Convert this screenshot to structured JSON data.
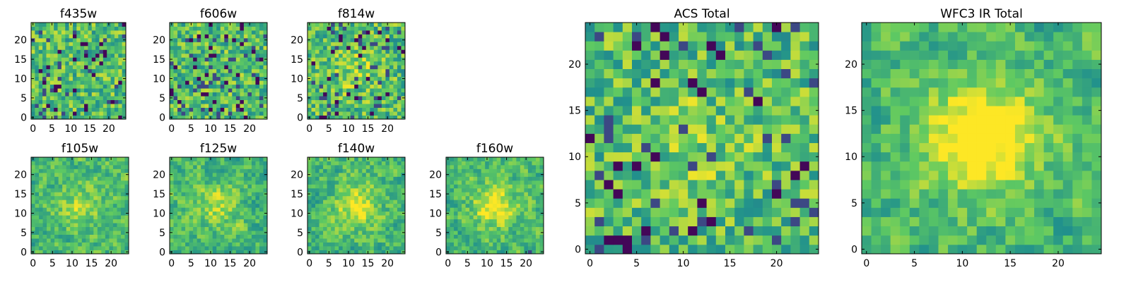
{
  "chart_data": [
    {
      "id": "f435w",
      "type": "heatmap",
      "title": "f435w",
      "grid_size": 25,
      "xlim": [
        0,
        24
      ],
      "ylim": [
        0,
        24
      ],
      "xticks": [
        0,
        5,
        10,
        15,
        20
      ],
      "yticks": [
        0,
        5,
        10,
        15,
        20
      ],
      "texture": "fine",
      "center_bright": 0.0,
      "seed": 11
    },
    {
      "id": "f606w",
      "type": "heatmap",
      "title": "f606w",
      "grid_size": 25,
      "xlim": [
        0,
        24
      ],
      "ylim": [
        0,
        24
      ],
      "xticks": [
        0,
        5,
        10,
        15,
        20
      ],
      "yticks": [
        0,
        5,
        10,
        15,
        20
      ],
      "texture": "fine",
      "center_bright": 0.0,
      "seed": 23
    },
    {
      "id": "f814w",
      "type": "heatmap",
      "title": "f814w",
      "grid_size": 25,
      "xlim": [
        0,
        24
      ],
      "ylim": [
        0,
        24
      ],
      "xticks": [
        0,
        5,
        10,
        15,
        20
      ],
      "yticks": [
        0,
        5,
        10,
        15,
        20
      ],
      "texture": "fine",
      "center_bright": 0.15,
      "seed": 37
    },
    {
      "id": "f105w",
      "type": "heatmap",
      "title": "f105w",
      "grid_size": 25,
      "xlim": [
        0,
        24
      ],
      "ylim": [
        0,
        24
      ],
      "xticks": [
        0,
        5,
        10,
        15,
        20
      ],
      "yticks": [
        0,
        5,
        10,
        15,
        20
      ],
      "texture": "smooth",
      "center_bright": 0.2,
      "seed": 41
    },
    {
      "id": "f125w",
      "type": "heatmap",
      "title": "f125w",
      "grid_size": 25,
      "xlim": [
        0,
        24
      ],
      "ylim": [
        0,
        24
      ],
      "xticks": [
        0,
        5,
        10,
        15,
        20
      ],
      "yticks": [
        0,
        5,
        10,
        15,
        20
      ],
      "texture": "smooth",
      "center_bright": 0.2,
      "seed": 53
    },
    {
      "id": "f140w",
      "type": "heatmap",
      "title": "f140w",
      "grid_size": 25,
      "xlim": [
        0,
        24
      ],
      "ylim": [
        0,
        24
      ],
      "xticks": [
        0,
        5,
        10,
        15,
        20
      ],
      "yticks": [
        0,
        5,
        10,
        15,
        20
      ],
      "texture": "smooth",
      "center_bright": 0.3,
      "seed": 67
    },
    {
      "id": "f160w",
      "type": "heatmap",
      "title": "f160w",
      "grid_size": 25,
      "xlim": [
        0,
        24
      ],
      "ylim": [
        0,
        24
      ],
      "xticks": [
        0,
        5,
        10,
        15,
        20
      ],
      "yticks": [
        0,
        5,
        10,
        15,
        20
      ],
      "texture": "smooth",
      "center_bright": 0.35,
      "seed": 79
    },
    {
      "id": "acs-total",
      "type": "heatmap",
      "title": "ACS Total",
      "grid_size": 25,
      "xlim": [
        0,
        24
      ],
      "ylim": [
        0,
        24
      ],
      "xticks": [
        0,
        5,
        10,
        15,
        20
      ],
      "yticks": [
        0,
        5,
        10,
        15,
        20
      ],
      "texture": "fine",
      "center_bright": 0.1,
      "seed": 97
    },
    {
      "id": "wfc3-ir-total",
      "type": "heatmap",
      "title": "WFC3 IR Total",
      "grid_size": 25,
      "xlim": [
        0,
        24
      ],
      "ylim": [
        0,
        24
      ],
      "xticks": [
        0,
        5,
        10,
        15,
        20
      ],
      "yticks": [
        0,
        5,
        10,
        15,
        20
      ],
      "texture": "smooth",
      "center_bright": 0.5,
      "seed": 113
    }
  ],
  "colormap": [
    "#440154",
    "#3b528b",
    "#21918c",
    "#5ec962",
    "#fde725"
  ]
}
